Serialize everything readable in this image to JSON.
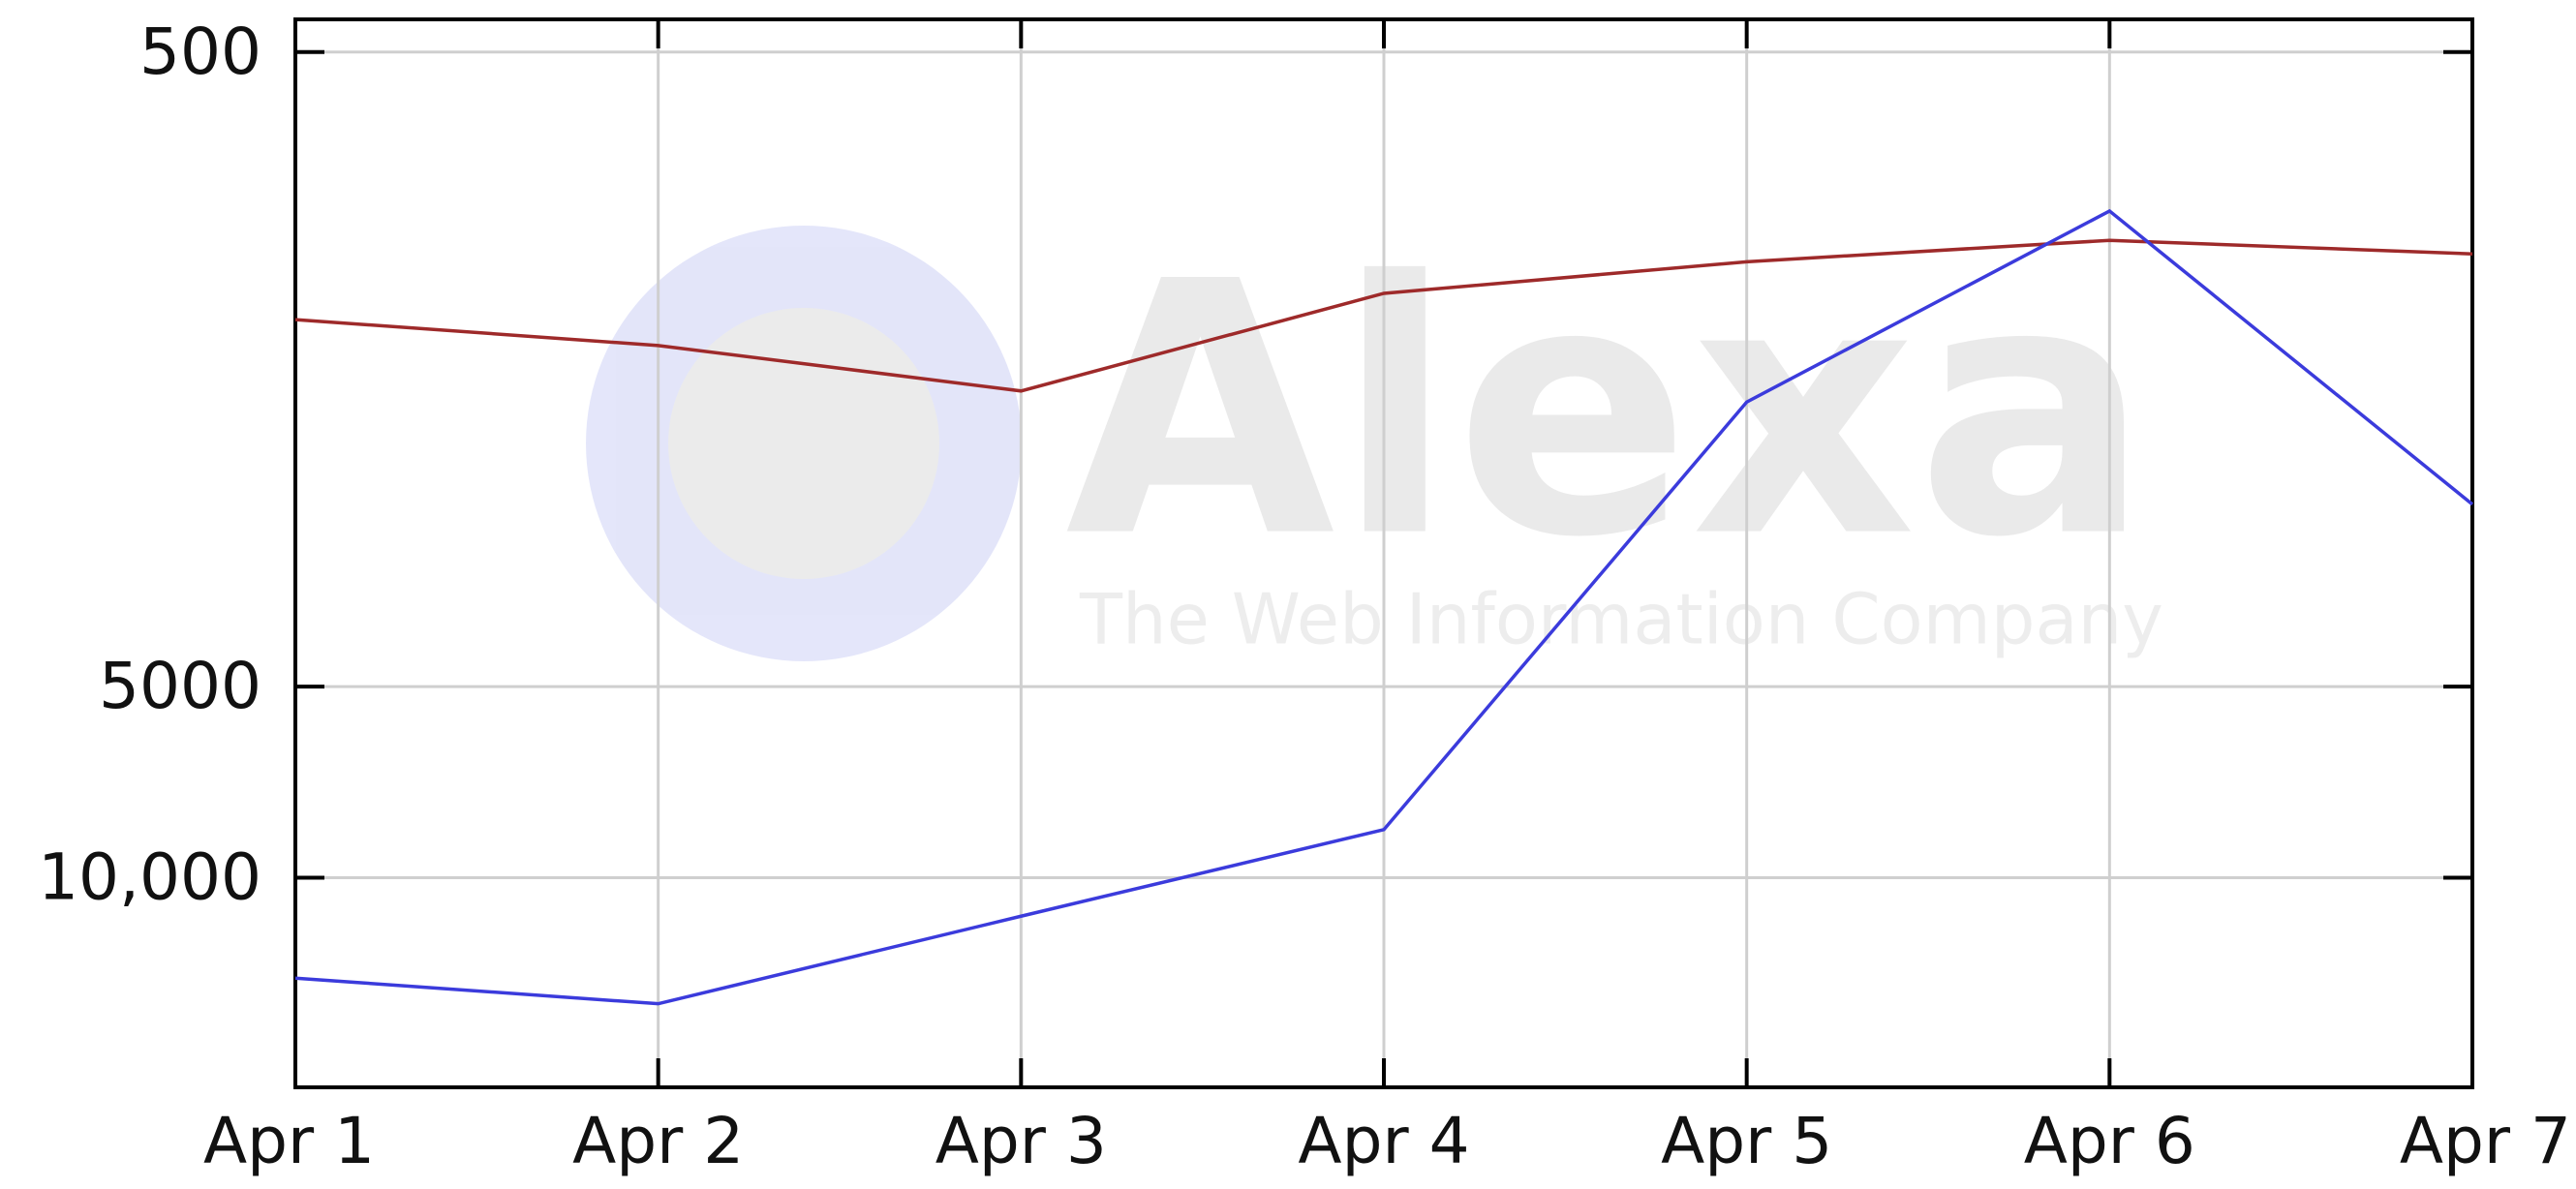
{
  "chart_data": {
    "type": "line",
    "watermark": {
      "text": "Alexa",
      "subtitle": "The Web Information Company"
    },
    "categories": [
      "Apr 1",
      "Apr 2",
      "Apr 3",
      "Apr 4",
      "Apr 5",
      "Apr 6",
      "Apr 7"
    ],
    "series": [
      {
        "color": "#9e2a2a",
        "values": [
          1320,
          1450,
          1710,
          1200,
          1070,
          990,
          1040
        ]
      },
      {
        "color": "#3b3bdc",
        "values": [
          14400,
          15800,
          11500,
          8400,
          1780,
          890,
          2580
        ]
      }
    ],
    "ylim": [
      444,
      21400
    ],
    "y_inverted": true,
    "log_scale": true,
    "yticks": [
      500,
      5000,
      {
        "value": 10000,
        "label": "10,000"
      }
    ],
    "grid": true
  }
}
